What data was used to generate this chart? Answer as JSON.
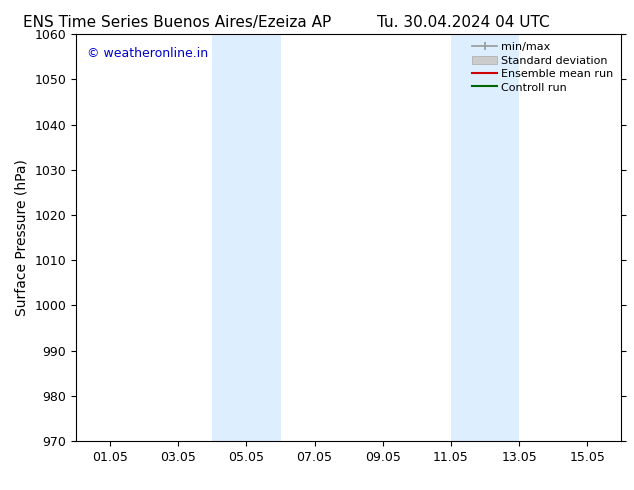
{
  "title_left": "ENS Time Series Buenos Aires/Ezeiza AP",
  "title_right": "Tu. 30.04.2024 04 UTC",
  "ylabel": "Surface Pressure (hPa)",
  "ylim": [
    970,
    1060
  ],
  "yticks": [
    970,
    980,
    990,
    1000,
    1010,
    1020,
    1030,
    1040,
    1050,
    1060
  ],
  "xtick_labels": [
    "01.05",
    "03.05",
    "05.05",
    "07.05",
    "09.05",
    "11.05",
    "13.05",
    "15.05"
  ],
  "xtick_positions": [
    1,
    3,
    5,
    7,
    9,
    11,
    13,
    15
  ],
  "xlim": [
    0,
    16
  ],
  "shaded_bands": [
    {
      "x_start": 4.0,
      "x_end": 6.0
    },
    {
      "x_start": 11.0,
      "x_end": 13.0
    }
  ],
  "shaded_color": "#ddeeff",
  "background_color": "#ffffff",
  "watermark_text": "© weatheronline.in",
  "watermark_color": "#0000cc",
  "watermark_fontsize": 9,
  "legend_entries": [
    {
      "label": "min/max",
      "color": "#aaaaaa"
    },
    {
      "label": "Standard deviation",
      "color": "#cccccc"
    },
    {
      "label": "Ensemble mean run",
      "color": "#cc0000"
    },
    {
      "label": "Controll run",
      "color": "#006600"
    }
  ],
  "title_fontsize": 11,
  "axis_label_fontsize": 10,
  "tick_fontsize": 9,
  "legend_fontsize": 8
}
